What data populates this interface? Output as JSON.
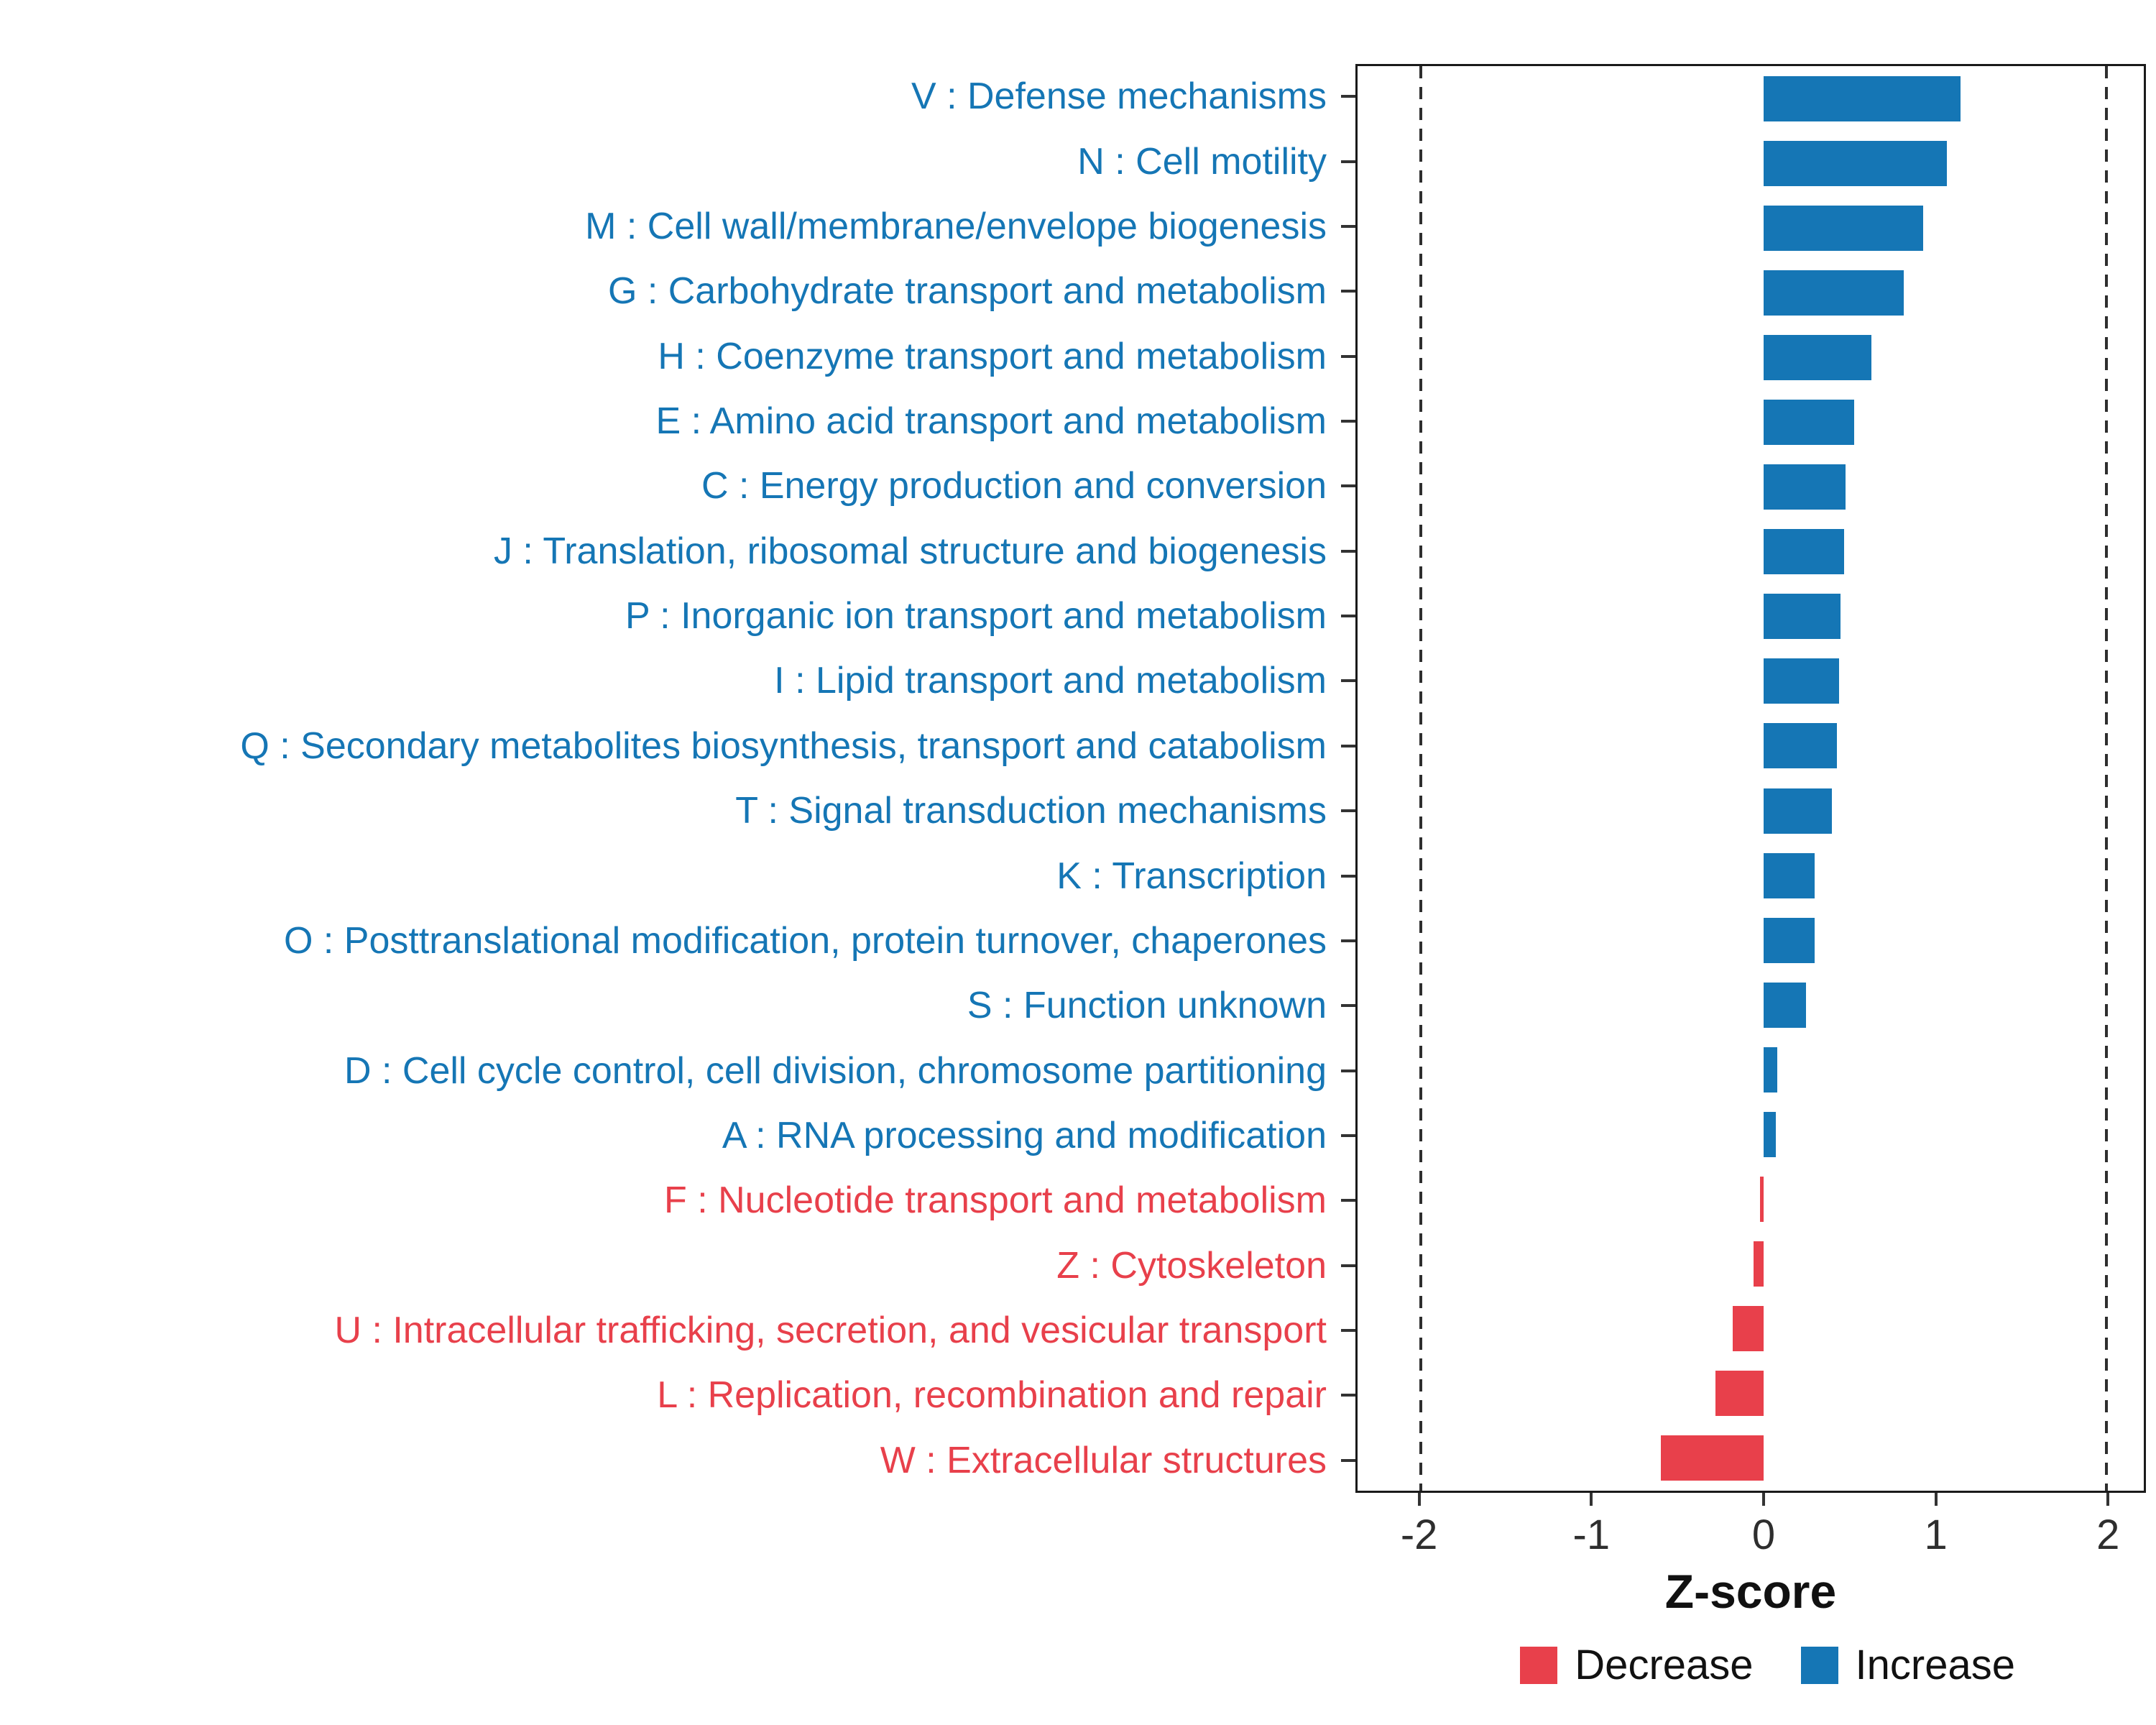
{
  "chart_data": {
    "type": "bar",
    "orientation": "horizontal",
    "title": "",
    "xlabel": "Z-score",
    "ylabel": "",
    "xlim": [
      -2.37,
      2.22
    ],
    "x_ticks": [
      -2,
      -1,
      0,
      1,
      2
    ],
    "reference_lines": [
      -2,
      2
    ],
    "grid": false,
    "legend_position": "bottom-right",
    "categories": [
      "V : Defense mechanisms",
      "N : Cell motility",
      "M : Cell wall/membrane/envelope biogenesis",
      "G : Carbohydrate transport and metabolism",
      "H : Coenzyme transport and metabolism",
      "E : Amino acid transport and metabolism",
      "C : Energy production and conversion",
      "J : Translation, ribosomal structure and biogenesis",
      "P : Inorganic ion transport and metabolism",
      "I : Lipid transport and metabolism",
      "Q : Secondary metabolites biosynthesis, transport and catabolism",
      "T : Signal transduction mechanisms",
      "K : Transcription",
      "O : Posttranslational modification, protein turnover, chaperones",
      "S : Function unknown",
      "D : Cell cycle control, cell division, chromosome partitioning",
      "A : RNA processing and modification",
      "F : Nucleotide transport and metabolism",
      "Z : Cytoskeleton",
      "U : Intracellular trafficking, secretion, and vesicular transport",
      "L : Replication, recombination and repair",
      "W : Extracellular structures"
    ],
    "values": [
      1.15,
      1.07,
      0.93,
      0.82,
      0.63,
      0.53,
      0.48,
      0.47,
      0.45,
      0.44,
      0.43,
      0.4,
      0.3,
      0.3,
      0.25,
      0.08,
      0.07,
      -0.02,
      -0.06,
      -0.18,
      -0.28,
      -0.6
    ],
    "directions": [
      "Increase",
      "Increase",
      "Increase",
      "Increase",
      "Increase",
      "Increase",
      "Increase",
      "Increase",
      "Increase",
      "Increase",
      "Increase",
      "Increase",
      "Increase",
      "Increase",
      "Increase",
      "Increase",
      "Increase",
      "Decrease",
      "Decrease",
      "Decrease",
      "Decrease",
      "Decrease"
    ],
    "colors": {
      "Increase": "#1576B5",
      "Decrease": "#E8404B"
    },
    "legend": [
      {
        "label": "Decrease",
        "color": "#E8404B"
      },
      {
        "label": "Increase",
        "color": "#1576B5"
      }
    ]
  }
}
